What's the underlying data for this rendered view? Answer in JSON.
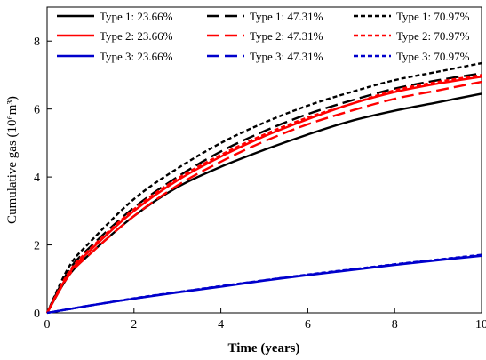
{
  "chart_data": {
    "type": "line",
    "xlabel": "Time (years)",
    "ylabel": "Cumulative  gas (10⁶m³)",
    "xlim": [
      0,
      10
    ],
    "ylim": [
      0,
      9
    ],
    "xticks": [
      0,
      2,
      4,
      6,
      8,
      10
    ],
    "yticks": [
      0,
      2,
      4,
      6,
      8
    ],
    "x_tick_labels": [
      "0",
      "2",
      "4",
      "6",
      "8",
      "10"
    ],
    "y_tick_labels": [
      "0",
      "2",
      "4",
      "6",
      "8"
    ],
    "grid": false,
    "legend_position": "top",
    "x": [
      0,
      0.5,
      1,
      2,
      3,
      4,
      5,
      6,
      7,
      8,
      9,
      10
    ],
    "series": [
      {
        "name": "Type 1: 23.66%",
        "color": "#000000",
        "dash": "solid",
        "values": [
          0,
          1.1,
          1.75,
          2.85,
          3.7,
          4.3,
          4.8,
          5.25,
          5.65,
          5.95,
          6.2,
          6.45
        ]
      },
      {
        "name": "Type 1: 47.31%",
        "color": "#000000",
        "dash": "long",
        "values": [
          0,
          1.25,
          1.95,
          3.1,
          4.0,
          4.75,
          5.35,
          5.85,
          6.25,
          6.6,
          6.85,
          7.05
        ]
      },
      {
        "name": "Type 1: 70.97%",
        "color": "#000000",
        "dash": "short",
        "values": [
          0,
          1.35,
          2.1,
          3.35,
          4.25,
          5.0,
          5.6,
          6.1,
          6.5,
          6.85,
          7.1,
          7.35
        ]
      },
      {
        "name": "Type 2: 23.66%",
        "color": "#ff0000",
        "dash": "solid",
        "values": [
          0,
          1.15,
          1.85,
          3.0,
          3.9,
          4.6,
          5.2,
          5.7,
          6.15,
          6.5,
          6.75,
          6.95
        ]
      },
      {
        "name": "Type 2: 47.31%",
        "color": "#ff0000",
        "dash": "long",
        "values": [
          0,
          1.1,
          1.75,
          2.85,
          3.75,
          4.45,
          5.05,
          5.55,
          5.95,
          6.3,
          6.55,
          6.8
        ]
      },
      {
        "name": "Type 2: 70.97%",
        "color": "#ff0000",
        "dash": "short",
        "values": [
          0,
          1.2,
          1.9,
          3.05,
          3.95,
          4.65,
          5.25,
          5.75,
          6.15,
          6.55,
          6.8,
          7.0
        ]
      },
      {
        "name": "Type 3: 23.66%",
        "color": "#0000cc",
        "dash": "solid",
        "values": [
          0,
          0.11,
          0.22,
          0.42,
          0.6,
          0.77,
          0.95,
          1.11,
          1.26,
          1.41,
          1.55,
          1.68
        ]
      },
      {
        "name": "Type 3: 47.31%",
        "color": "#0000cc",
        "dash": "long",
        "values": [
          0,
          0.11,
          0.22,
          0.42,
          0.61,
          0.78,
          0.96,
          1.12,
          1.27,
          1.42,
          1.56,
          1.69
        ]
      },
      {
        "name": "Type 3: 70.97%",
        "color": "#0000cc",
        "dash": "short",
        "values": [
          0,
          0.11,
          0.22,
          0.43,
          0.61,
          0.79,
          0.96,
          1.13,
          1.28,
          1.43,
          1.57,
          1.71
        ]
      }
    ]
  }
}
